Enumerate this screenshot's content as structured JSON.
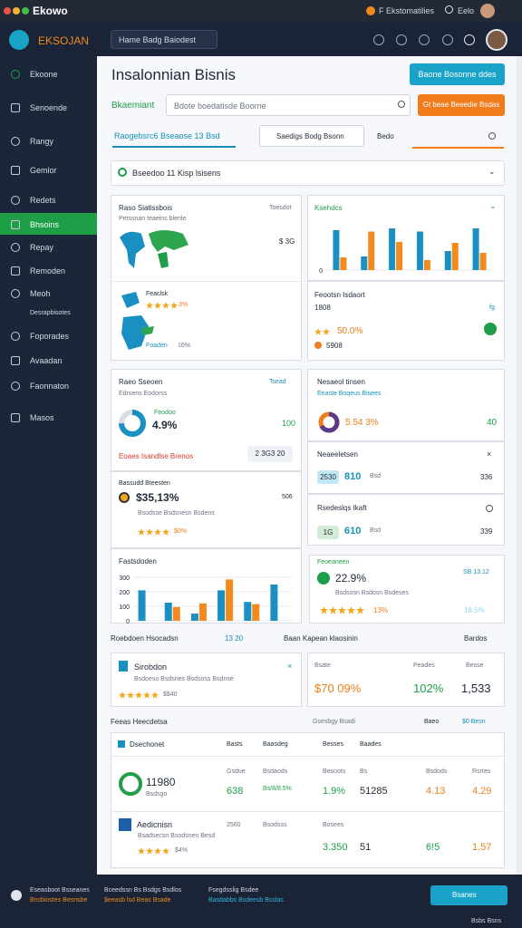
{
  "titlebar": {
    "app": "Ekowo",
    "status": "F Ekstomatilies",
    "user": "Eelo"
  },
  "header": {
    "logo": "EKSOJAN",
    "dropdown": "Hame Badg Baiodest"
  },
  "sidebar": {
    "items": [
      "Ekoone",
      "Senoende",
      "Rangy",
      "Gemlor",
      "Redets",
      "Bhsoins",
      "Repay",
      "Remoden",
      "Meoh",
      "Desrapbisotes",
      "Foporades",
      "Avaadan",
      "Faonnaton",
      "Masos"
    ]
  },
  "page": {
    "title": "Insalonnian Bisnis",
    "action": "Baone Bosonne ddes",
    "filter_label": "Bkaemiant",
    "search": "Bdote boedatisde Boorne",
    "search_button": "Gt beae Beeedie Bsdas",
    "tabs": [
      "Raogebsrc6 Bseaose 13 Bsd",
      "Saedigs Bodg Bsonn",
      "Bedo"
    ],
    "selector": "Bseedoo 11 Kisp lsisens"
  },
  "cards": {
    "map": {
      "title": "Raso Siatissbois",
      "corner": "Toesdot",
      "subtitle": "Petssnan teaeins blenle",
      "value": "$ 3G",
      "region": "Feaclsk",
      "rating": "3%",
      "sub": "Foaden",
      "sub_value": "16%"
    },
    "trend": {
      "title": "Ksehdcs",
      "ylim": [
        0,
        100
      ],
      "yticks": [
        0
      ],
      "series": [
        {
          "color": "#1a8fc1",
          "values": [
            88,
            30,
            92,
            85,
            42,
            92
          ]
        },
        {
          "color": "#f28a1e",
          "values": [
            28,
            85,
            62,
            22,
            60,
            38
          ]
        }
      ]
    },
    "feature": {
      "title": "Feootsn Isdaort",
      "value": "1808",
      "corner": "fg",
      "rating": "50.0%",
      "sub": "5908"
    },
    "reason": {
      "title": "Raeo Sseoen",
      "corner": "Tsead",
      "subtitle": "Edrsens Eodorss",
      "value": "4.9%",
      "label": "Feodoo",
      "count": "100",
      "footer": "Eoaes Isandlse Brenos",
      "button": "2 3G3 20"
    },
    "base": {
      "title": "Bassudd Bteesten",
      "value": "$35,13%",
      "corner": "506",
      "sub": "Bsodsse Bsdsnesn Bsdens",
      "rating": "$0%"
    },
    "fast": {
      "title": "Fastsdoden",
      "ylim": [
        0,
        300
      ],
      "yticks": [
        0,
        100,
        200,
        300
      ],
      "series": [
        {
          "color": "#1a8fc1",
          "values": [
            210,
            125,
            50,
            210,
            130,
            250
          ]
        },
        {
          "color": "#f28a1e",
          "values": [
            0,
            95,
            120,
            285,
            115,
            0
          ]
        }
      ]
    },
    "national": {
      "title": "Nesaeol tinsen",
      "subtitle": "Eeaste Boqeus Bisees",
      "value": "5.54 3%",
      "count": "40"
    },
    "neael": {
      "title": "Neaeeletsen",
      "pill": "2530",
      "value": "810",
      "sub": "Bsd",
      "corner": "336"
    },
    "rsed": {
      "title": "Rsedeslqs Ikaft",
      "pill": "1G",
      "value": "610",
      "sub": "Bsd",
      "corner": "339"
    },
    "feo": {
      "title": "Feoeaneen",
      "value": "22.9%",
      "corner": "SB 13.12",
      "sub": "Bsdsosn Bsdosn Bsdeses",
      "rating": "13%",
      "light": "18.5%"
    }
  },
  "section1": {
    "left": "Roebdoen Hsocadsn",
    "mid": "13 20",
    "right": "Baan Kapean klaosinin",
    "menu": "Bardos"
  },
  "sirob": {
    "title": "Sirobdon",
    "sub": "Bsdoeso Bsdsnes Bsdsoss Bsdnse",
    "rating": "$$40"
  },
  "stats": [
    {
      "label": "Bsate",
      "value": "$70 09%"
    },
    {
      "label": "Peades",
      "value": "102%"
    },
    {
      "label": "Besse",
      "value": "1,533"
    }
  ],
  "section2": {
    "left": "Feeas Heecdetsa",
    "mid": "Gsesbgy Bsadi",
    "menu": "Baeo",
    "menu2": "$0 Besn"
  },
  "table": {
    "title": "Dsechonet",
    "columns": [
      "Basts",
      "Baasdeg",
      "Besses",
      "Baades"
    ],
    "row1": {
      "value": "11980",
      "sub": "Bsdsgo",
      "labels": [
        "Gsdue",
        "Bsdaods",
        "Besuots",
        "Bs",
        "Bsdods",
        "Rsrtes"
      ],
      "values": [
        "638",
        "Bs/8/8.5%",
        "1.9%",
        "51285",
        "4.13",
        "4.29"
      ]
    },
    "row2": {
      "title": "Aedicnisn",
      "sub": "Bsadsecsn Bsodsnen Besd",
      "rating": "$4%",
      "labels": [
        "2560",
        "Bsodsss",
        "Bosees"
      ],
      "values": [
        "3.350",
        "51",
        "6!5",
        "1.57"
      ]
    }
  },
  "footer": {
    "col1": [
      "Eseasboot Bsseanes",
      "Bnsbiostes Besnsbe"
    ],
    "col2": [
      "Bceedssn Bs Bsdgs Bsdlos",
      "$eeasb lsd Beas Bsade"
    ],
    "col3": [
      "Fsegdsslig Bsdee",
      "Basdabbs Bsdeesb Bsslas"
    ],
    "button": "Bsanes",
    "corner": "Bsbs Bsns"
  }
}
